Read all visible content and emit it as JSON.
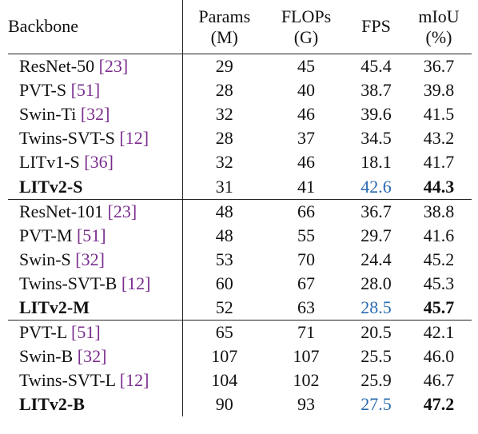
{
  "table": {
    "headers": {
      "backbone": "Backbone",
      "params": [
        "Params",
        "(M)"
      ],
      "flops": [
        "FLOPs",
        "(G)"
      ],
      "fps": "FPS",
      "miou": [
        "mIoU",
        "(%)"
      ]
    },
    "groups": [
      {
        "rows": [
          {
            "name": "ResNet-50 ",
            "cite": "[23]",
            "params": "29",
            "flops": "45",
            "fps": "45.4",
            "miou": "36.7"
          },
          {
            "name": "PVT-S ",
            "cite": "[51]",
            "params": "28",
            "flops": "40",
            "fps": "38.7",
            "miou": "39.8"
          },
          {
            "name": "Swin-Ti ",
            "cite": "[32]",
            "params": "32",
            "flops": "46",
            "fps": "39.6",
            "miou": "41.5"
          },
          {
            "name": "Twins-SVT-S ",
            "cite": "[12]",
            "params": "28",
            "flops": "37",
            "fps": "34.5",
            "miou": "43.2"
          },
          {
            "name": "LITv1-S ",
            "cite": "[36]",
            "params": "32",
            "flops": "46",
            "fps": "18.1",
            "miou": "41.7"
          },
          {
            "name": "LITv2-S",
            "cite": "",
            "params": "31",
            "flops": "41",
            "fps": "42.6",
            "miou": "44.3",
            "ours": true
          }
        ]
      },
      {
        "rows": [
          {
            "name": "ResNet-101 ",
            "cite": "[23]",
            "params": "48",
            "flops": "66",
            "fps": "36.7",
            "miou": "38.8"
          },
          {
            "name": "PVT-M ",
            "cite": "[51]",
            "params": "48",
            "flops": "55",
            "fps": "29.7",
            "miou": "41.6"
          },
          {
            "name": "Swin-S ",
            "cite": "[32]",
            "params": "53",
            "flops": "70",
            "fps": "24.4",
            "miou": "45.2"
          },
          {
            "name": "Twins-SVT-B ",
            "cite": "[12]",
            "params": "60",
            "flops": "67",
            "fps": "28.0",
            "miou": "45.3"
          },
          {
            "name": "LITv2-M",
            "cite": "",
            "params": "52",
            "flops": "63",
            "fps": "28.5",
            "miou": "45.7",
            "ours": true
          }
        ]
      },
      {
        "rows": [
          {
            "name": "PVT-L ",
            "cite": "[51]",
            "params": "65",
            "flops": "71",
            "fps": "20.5",
            "miou": "42.1"
          },
          {
            "name": "Swin-B ",
            "cite": "[32]",
            "params": "107",
            "flops": "107",
            "fps": "25.5",
            "miou": "46.0"
          },
          {
            "name": "Twins-SVT-L ",
            "cite": "[12]",
            "params": "104",
            "flops": "102",
            "fps": "25.9",
            "miou": "46.7"
          },
          {
            "name": "LITv2-B",
            "cite": "",
            "params": "90",
            "flops": "93",
            "fps": "27.5",
            "miou": "47.2",
            "ours": true
          }
        ]
      }
    ],
    "colors": {
      "citation": "#7b2d8e",
      "highlight_fps": "#2a6ab0",
      "text": "#111111"
    }
  }
}
